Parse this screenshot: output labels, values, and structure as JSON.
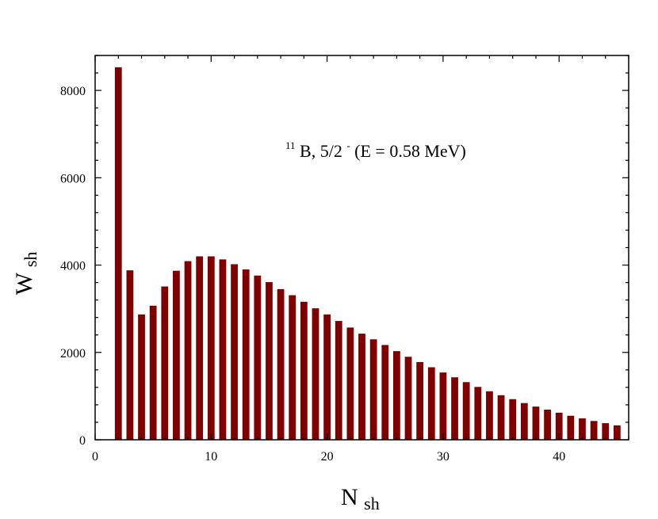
{
  "chart_data": {
    "type": "bar",
    "title": "",
    "xlabel": {
      "main": "N",
      "sub": "sh"
    },
    "ylabel": {
      "main": "W",
      "sub": "sh"
    },
    "xlim": [
      0,
      46
    ],
    "ylim": [
      0,
      8800
    ],
    "x_ticks": [
      "0",
      "10",
      "20",
      "30",
      "40"
    ],
    "y_ticks": [
      "0",
      "2000",
      "4000",
      "6000",
      "8000"
    ],
    "bar_color": "#800000",
    "grid": false,
    "annotation": {
      "superscript_mass": "11",
      "text_main": "B, 5/2",
      "superscript_parity": "-",
      "text_tail": " (E = 0.58 MeV)"
    },
    "x": [
      2,
      3,
      4,
      5,
      6,
      7,
      8,
      9,
      10,
      11,
      12,
      13,
      14,
      15,
      16,
      17,
      18,
      19,
      20,
      21,
      22,
      23,
      24,
      25,
      26,
      27,
      28,
      29,
      30,
      31,
      32,
      33,
      34,
      35,
      36,
      37,
      38,
      39,
      40,
      41,
      42,
      43,
      44,
      45
    ],
    "values": [
      8530,
      3880,
      2870,
      3070,
      3510,
      3870,
      4090,
      4200,
      4200,
      4130,
      4020,
      3900,
      3760,
      3610,
      3450,
      3310,
      3160,
      3010,
      2870,
      2720,
      2570,
      2430,
      2300,
      2170,
      2030,
      1900,
      1780,
      1660,
      1540,
      1430,
      1320,
      1210,
      1110,
      1020,
      930,
      840,
      760,
      690,
      620,
      550,
      490,
      430,
      380,
      330
    ]
  }
}
